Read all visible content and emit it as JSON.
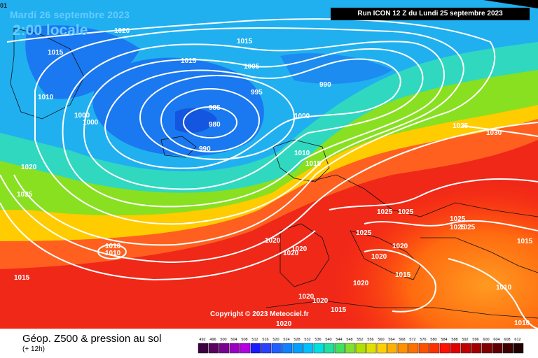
{
  "header": {
    "date": "Mardi 26 septembre 2023",
    "local_time": "2:00 locale",
    "run": "Run ICON 12 Z du Lundi 25 septembre 2023",
    "corner": "01"
  },
  "copyright": "Copyright © 2023 Meteociel.fr",
  "footer": {
    "title": "Géop. Z500 & pression au sol",
    "subtitle": "(+ 12h)"
  },
  "legend": {
    "ticks": [
      "492",
      "496",
      "500",
      "504",
      "508",
      "512",
      "516",
      "520",
      "524",
      "528",
      "532",
      "536",
      "540",
      "544",
      "548",
      "552",
      "556",
      "560",
      "564",
      "568",
      "572",
      "576",
      "580",
      "584",
      "588",
      "592",
      "596",
      "600",
      "604",
      "608",
      "612"
    ],
    "colors": [
      "#3d0040",
      "#5a0060",
      "#7a0090",
      "#9a00c0",
      "#b400e0",
      "#1a1aff",
      "#2a40ff",
      "#2060ff",
      "#1080ff",
      "#00a0ff",
      "#00c0ff",
      "#00e0e0",
      "#20e0a0",
      "#40e060",
      "#80e030",
      "#b0e000",
      "#e0e000",
      "#ffd000",
      "#ffb000",
      "#ff9000",
      "#ff7000",
      "#ff5000",
      "#ff3000",
      "#ff1000",
      "#e00000",
      "#c00000",
      "#a00000",
      "#800000",
      "#600000",
      "#400000",
      "#200000"
    ]
  },
  "isobar_labels": [
    "1020",
    "1015",
    "1015",
    "1015",
    "1010",
    "1005",
    "1000",
    "1000",
    "995",
    "990",
    "985",
    "980",
    "990",
    "1000",
    "1010",
    "1015",
    "1020",
    "1025",
    "1010",
    "1010",
    "1015",
    "1020",
    "1020",
    "1025",
    "1025",
    "1025",
    "1025",
    "1030",
    "1025",
    "1025",
    "1020",
    "1025",
    "1020",
    "1020",
    "1015",
    "1020",
    "1020",
    "1015",
    "1015",
    "1010",
    "1010",
    "1020",
    "1020"
  ]
}
